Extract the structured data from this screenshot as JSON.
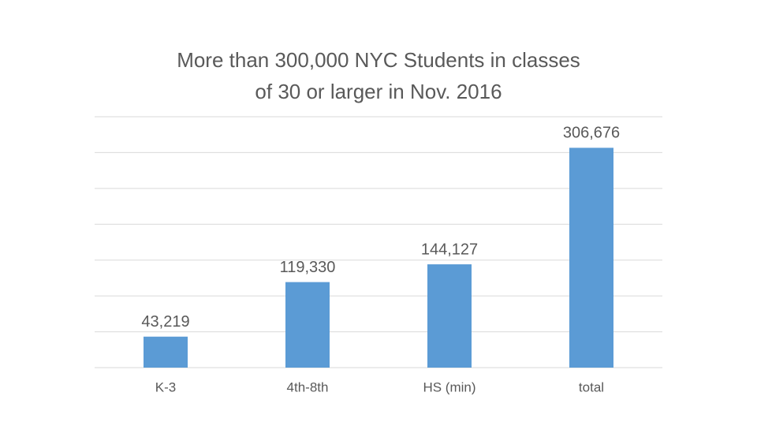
{
  "chart_data": {
    "type": "bar",
    "title": [
      "More than 300,000 NYC Students in classes",
      "of 30 or larger in Nov. 2016"
    ],
    "categories": [
      "K-3",
      "4th-8th",
      "HS (min)",
      "total"
    ],
    "values": [
      43219,
      119330,
      144127,
      306676
    ],
    "value_labels": [
      "43,219",
      "119,330",
      "144,127",
      "306,676"
    ],
    "color": "#5b9bd5",
    "ylim": [
      0,
      350000
    ],
    "yticks": [
      0,
      50000,
      100000,
      150000,
      200000,
      250000,
      300000,
      350000
    ],
    "grid": true
  }
}
